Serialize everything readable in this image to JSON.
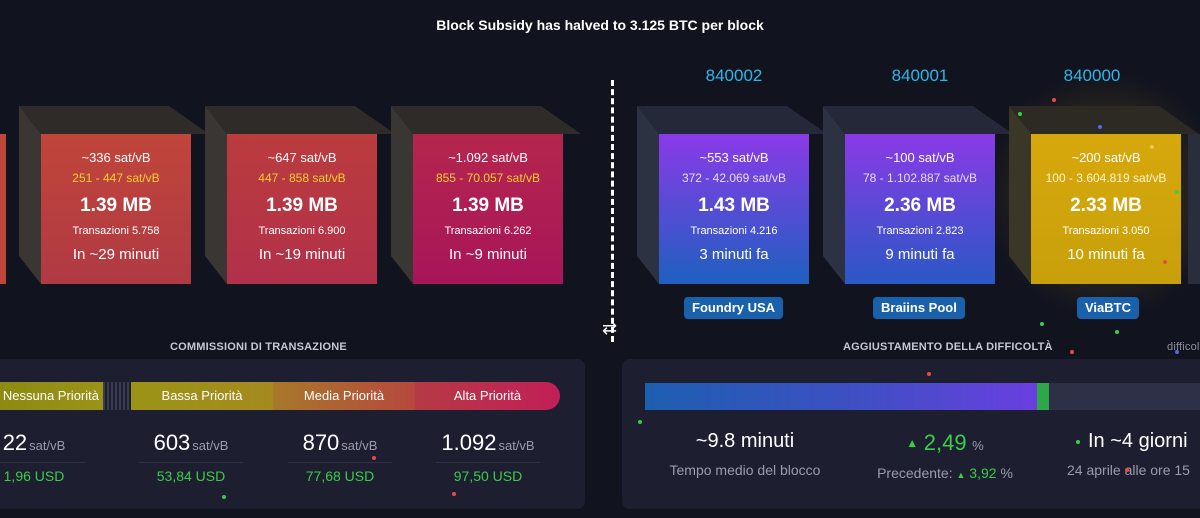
{
  "banner": "Block Subsidy has halved to 3.125 BTC per block",
  "future_blocks": [
    {
      "fee": "~336 sat/vB",
      "range": "251 - 447 sat/vB",
      "size": "1.39 MB",
      "tx": "Transazioni 5.758",
      "time": "In ~29 minuti",
      "color_top": "#c0453a",
      "color_bottom": "#b03a44"
    },
    {
      "fee": "~647 sat/vB",
      "range": "447 - 858 sat/vB",
      "size": "1.39 MB",
      "tx": "Transazioni 6.900",
      "time": "In ~19 minuti",
      "color_top": "#bb3c3e",
      "color_bottom": "#b2304a"
    },
    {
      "fee": "~1.092 sat/vB",
      "range": "855 - 70.057 sat/vB",
      "size": "1.39 MB",
      "tx": "Transazioni 6.262",
      "time": "In ~9 minuti",
      "color_top": "#b5264d",
      "color_bottom": "#a8155a"
    }
  ],
  "mined_blocks": [
    {
      "height": "840002",
      "fee": "~553 sat/vB",
      "range": "372 - 42.069 sat/vB",
      "size": "1.43 MB",
      "tx": "Transazioni 4.216",
      "time": "3 minuti fa",
      "pool": "Foundry USA",
      "color_top": "#8b3ae8",
      "color_bottom": "#1f5fc0"
    },
    {
      "height": "840001",
      "fee": "~100 sat/vB",
      "range": "78 - 1.102.887 sat/vB",
      "size": "2.36 MB",
      "tx": "Transazioni 2.823",
      "time": "9 minuti fa",
      "pool": "Braiins Pool",
      "color_top": "#8a3ae6",
      "color_bottom": "#2a58c6"
    },
    {
      "height": "840000",
      "fee": "~200 sat/vB",
      "range": "100 - 3.604.819 sat/vB",
      "size": "2.33 MB",
      "tx": "Transazioni 3.050",
      "time": "10 minuti fa",
      "pool": "ViaBTC",
      "color_top": "#d7a80d",
      "color_bottom": "#c8a00a"
    }
  ],
  "fees_section": {
    "title": "COMMISSIONI DI TRANSAZIONE",
    "segments": [
      "Nessuna Priorità",
      "Bassa Priorità",
      "Media Priorità",
      "Alta Priorità"
    ],
    "values": [
      {
        "value": "22",
        "unit": "sat/vB",
        "usd": "1,96 USD"
      },
      {
        "value": "603",
        "unit": "sat/vB",
        "usd": "53,84 USD"
      },
      {
        "value": "870",
        "unit": "sat/vB",
        "usd": "77,68 USD"
      },
      {
        "value": "1.092",
        "unit": "sat/vB",
        "usd": "97,50 USD"
      }
    ]
  },
  "difficulty_section": {
    "title": "AGGIUSTAMENTO DELLA DIFFICOLTÀ",
    "title_right": "difficoltà",
    "progress_fraction": 0.7,
    "avg_time_value": "~9.8 minuti",
    "avg_time_label": "Tempo medio del blocco",
    "change_value": "2,49",
    "change_unit": "%",
    "previous_label": "Precedente:",
    "previous_value": "3,92",
    "previous_unit": "%",
    "next_value": "In ~4 giorni",
    "next_label": "24 aprile alle ore 15"
  },
  "colors": {
    "background": "#11131f",
    "panel": "#1d1f31",
    "accent_blue": "#2fb5e8",
    "fee_green": "#3bcc49",
    "range_yellow": "#f7d030"
  }
}
